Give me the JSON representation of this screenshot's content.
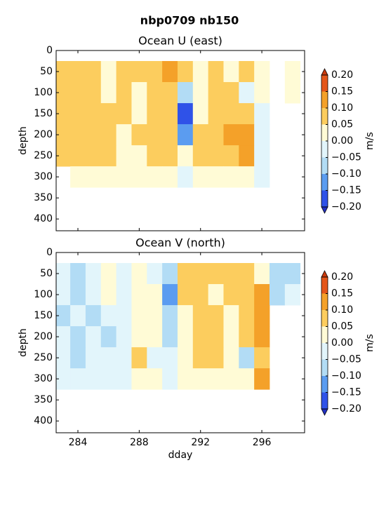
{
  "title": "nbp0709 nb150",
  "chart_data": [
    {
      "type": "heatmap",
      "title": "Ocean U (east)",
      "ylabel": "depth",
      "xticklabels": false,
      "x": [
        283,
        284,
        285,
        286,
        287,
        288,
        289,
        290,
        291,
        292,
        293,
        294,
        295,
        296,
        297,
        298
      ],
      "y": [
        50,
        100,
        150,
        200,
        250,
        300
      ],
      "values": [
        [
          0.07,
          0.06,
          0.08,
          0.04,
          0.08,
          0.06,
          0.07,
          0.13,
          0.06,
          0.04,
          0.07,
          0.03,
          0.06,
          0.04,
          null,
          0.03
        ],
        [
          0.08,
          0.06,
          0.07,
          0.03,
          0.06,
          0.04,
          0.08,
          0.09,
          -0.07,
          0.02,
          0.07,
          0.06,
          -0.03,
          0.03,
          null,
          0.01
        ],
        [
          0.1,
          0.08,
          0.06,
          0.07,
          0.06,
          0.02,
          0.06,
          0.07,
          -0.17,
          0.04,
          0.07,
          0.1,
          0.06,
          -0.04,
          null,
          null
        ],
        [
          0.06,
          0.07,
          0.08,
          0.06,
          0.04,
          0.06,
          0.07,
          0.06,
          -0.12,
          0.06,
          0.08,
          0.13,
          0.12,
          -0.02,
          null,
          null
        ],
        [
          0.08,
          0.07,
          0.06,
          0.06,
          0.04,
          0.05,
          0.08,
          0.06,
          0.03,
          0.06,
          0.07,
          0.09,
          0.13,
          -0.03,
          null,
          null
        ],
        [
          null,
          0.02,
          0.03,
          0.02,
          0.02,
          0.01,
          0.02,
          0.01,
          -0.02,
          0.01,
          0.03,
          0.02,
          0.02,
          -0.01,
          null,
          null
        ]
      ],
      "xlim": [
        282.58,
        298.79
      ],
      "ylim": [
        428,
        0
      ],
      "xticks": [
        284,
        288,
        292,
        296
      ],
      "yticks": [
        0,
        50,
        100,
        150,
        200,
        250,
        300,
        350,
        400
      ],
      "colorbar": {
        "label": "m/s",
        "levels": [
          {
            "value": -0.2,
            "label": "−0.20"
          },
          {
            "value": -0.15,
            "label": "−0.15"
          },
          {
            "value": -0.1,
            "label": "−0.10"
          },
          {
            "value": -0.05,
            "label": "−0.05"
          },
          {
            "value": 0,
            "label": "0.00"
          },
          {
            "value": 0.05,
            "label": "0.05"
          },
          {
            "value": 0.1,
            "label": "0.10"
          },
          {
            "value": 0.15,
            "label": "0.15"
          },
          {
            "value": 0.2,
            "label": "0.20"
          }
        ],
        "colors": [
          "#2f52e8",
          "#5b9cf0",
          "#b2dcf5",
          "#e2f5fb",
          "#fffbd6",
          "#fccd5e",
          "#f4a129",
          "#e4561a"
        ],
        "extend_colors": [
          "#2230c0",
          "#c93a0e"
        ]
      }
    },
    {
      "type": "heatmap",
      "title": "Ocean V (north)",
      "ylabel": "depth",
      "xlabel": "dday",
      "xticklabels": true,
      "x": [
        283,
        284,
        285,
        286,
        287,
        288,
        289,
        290,
        291,
        292,
        293,
        294,
        295,
        296,
        297,
        298
      ],
      "y": [
        50,
        100,
        150,
        200,
        250,
        300
      ],
      "values": [
        [
          -0.03,
          -0.05,
          -0.02,
          0.02,
          -0.03,
          0.04,
          -0.02,
          -0.07,
          0.08,
          0.1,
          0.06,
          0.08,
          0.07,
          0.02,
          -0.06,
          -0.08
        ],
        [
          -0.04,
          -0.06,
          -0.03,
          0.03,
          -0.04,
          0.02,
          0.01,
          -0.12,
          0.06,
          0.08,
          0.05,
          0.07,
          0.06,
          0.11,
          -0.06,
          -0.04
        ],
        [
          -0.06,
          -0.04,
          -0.07,
          -0.02,
          -0.03,
          0.02,
          0.03,
          -0.08,
          0.04,
          0.07,
          0.07,
          0.03,
          0.08,
          0.13,
          null,
          null
        ],
        [
          -0.03,
          -0.05,
          -0.04,
          -0.06,
          -0.02,
          0.03,
          0.02,
          -0.07,
          0.05,
          0.06,
          0.08,
          0.04,
          0.07,
          0.12,
          null,
          null
        ],
        [
          -0.04,
          -0.06,
          -0.03,
          -0.04,
          -0.02,
          0.06,
          -0.02,
          -0.04,
          0.03,
          0.08,
          0.06,
          0.02,
          -0.08,
          0.1,
          null,
          null
        ],
        [
          -0.02,
          -0.03,
          -0.02,
          -0.02,
          -0.01,
          0.01,
          0.01,
          -0.02,
          0.02,
          0.03,
          0.03,
          0.01,
          0.01,
          0.12,
          null,
          null
        ]
      ],
      "xlim": [
        282.58,
        298.79
      ],
      "ylim": [
        428,
        0
      ],
      "xticks": [
        284,
        288,
        292,
        296
      ],
      "yticks": [
        0,
        50,
        100,
        150,
        200,
        250,
        300,
        350,
        400
      ],
      "colorbar": {
        "label": "m/s",
        "levels": [
          {
            "value": -0.2,
            "label": "−0.20"
          },
          {
            "value": -0.15,
            "label": "−0.15"
          },
          {
            "value": -0.1,
            "label": "−0.10"
          },
          {
            "value": -0.05,
            "label": "−0.05"
          },
          {
            "value": 0,
            "label": "0.00"
          },
          {
            "value": 0.05,
            "label": "0.05"
          },
          {
            "value": 0.1,
            "label": "0.10"
          },
          {
            "value": 0.15,
            "label": "0.15"
          },
          {
            "value": 0.2,
            "label": "0.20"
          }
        ],
        "colors": [
          "#2f52e8",
          "#5b9cf0",
          "#b2dcf5",
          "#e2f5fb",
          "#fffbd6",
          "#fccd5e",
          "#f4a129",
          "#e4561a"
        ],
        "extend_colors": [
          "#2230c0",
          "#c93a0e"
        ]
      }
    }
  ]
}
